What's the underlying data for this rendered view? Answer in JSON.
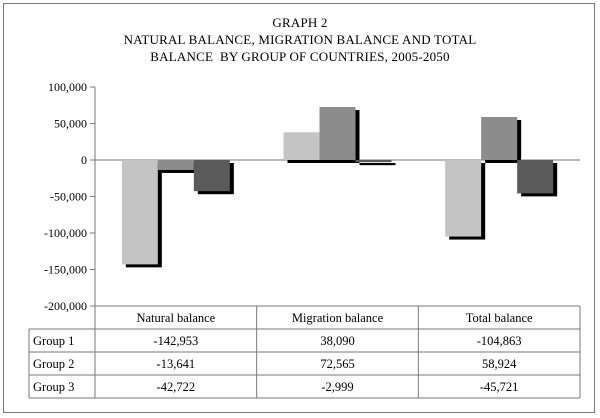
{
  "chart_data": {
    "type": "bar",
    "title_lines": [
      "GRAPH 2",
      "NATURAL BALANCE, MIGRATION BALANCE AND TOTAL",
      "BALANCE  BY GROUP OF COUNTRIES, 2005-2050"
    ],
    "categories": [
      "Natural balance",
      "Migration balance",
      "Total balance"
    ],
    "series": [
      {
        "name": "Group 1",
        "values": [
          -142953,
          38090,
          -104863
        ],
        "labels": [
          "-142,953",
          "38,090",
          "-104,863"
        ],
        "color": "#c4c4c4"
      },
      {
        "name": "Group 2",
        "values": [
          -13641,
          72565,
          58924
        ],
        "labels": [
          "-13,641",
          "72,565",
          "58,924"
        ],
        "color": "#8c8c8c"
      },
      {
        "name": "Group 3",
        "values": [
          -42722,
          -2999,
          -45721
        ],
        "labels": [
          "-42,722",
          "-2,999",
          "-45,721"
        ],
        "color": "#5a5a5a"
      }
    ],
    "ylim": [
      -200000,
      100000
    ],
    "yticks": [
      100000,
      50000,
      0,
      -50000,
      -100000,
      -150000,
      -200000
    ],
    "ytick_labels": [
      "100,000",
      "50,000",
      "0",
      "-50,000",
      "-100,000",
      "-150,000",
      "-200,000"
    ],
    "xlabel": "",
    "ylabel": "",
    "grid": false,
    "legend": "data-table"
  }
}
